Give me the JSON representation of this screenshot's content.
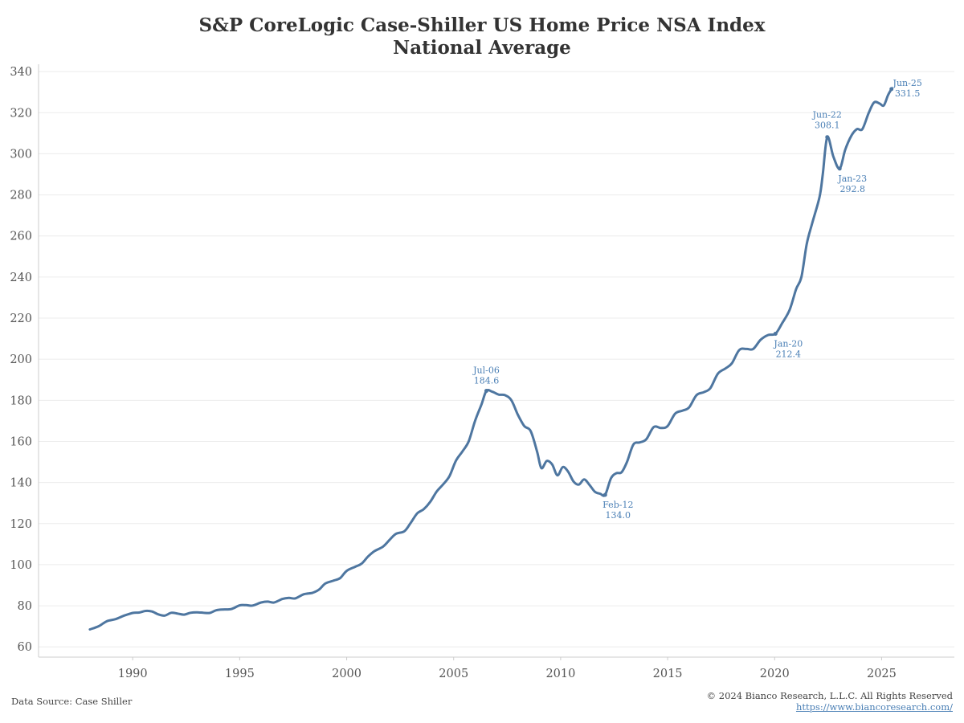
{
  "title_line1": "S&P CoreLogic Case-Shiller US Home Price NSA Index",
  "title_line2": "National Average",
  "footer": {
    "source": "Data Source: Case Shiller",
    "copyright": "© 2024 Bianco Research, L.L.C. All Rights Reserved",
    "url": "https://www.biancoresearch.com/"
  },
  "colors": {
    "line": "#4e76a0",
    "annotation": "#4a7fb5",
    "grid": "#ececec",
    "text": "#555555"
  },
  "chart_data": {
    "type": "line",
    "title": "S&P CoreLogic Case-Shiller US Home Price NSA Index National Average",
    "xlabel": "",
    "ylabel": "",
    "xlim": [
      1985.6,
      2028.4
    ],
    "ylim": [
      55,
      342
    ],
    "x_ticks": [
      1990,
      1995,
      2000,
      2005,
      2010,
      2015,
      2020,
      2025
    ],
    "y_ticks": [
      60,
      80,
      100,
      120,
      140,
      160,
      180,
      200,
      220,
      240,
      260,
      280,
      300,
      320,
      340
    ],
    "grid": "horizontal",
    "series": [
      {
        "points": [
          [
            1988.0,
            68.5
          ],
          [
            1988.4,
            70
          ],
          [
            1988.8,
            72.5
          ],
          [
            1989.2,
            73.5
          ],
          [
            1989.6,
            75.2
          ],
          [
            1990.0,
            76.5
          ],
          [
            1990.3,
            76.7
          ],
          [
            1990.6,
            77.5
          ],
          [
            1990.9,
            77.2
          ],
          [
            1991.2,
            75.8
          ],
          [
            1991.5,
            75.2
          ],
          [
            1991.8,
            76.6
          ],
          [
            1992.1,
            76.2
          ],
          [
            1992.4,
            75.7
          ],
          [
            1992.7,
            76.6
          ],
          [
            1993.0,
            76.8
          ],
          [
            1993.3,
            76.6
          ],
          [
            1993.6,
            76.5
          ],
          [
            1993.9,
            77.8
          ],
          [
            1994.2,
            78.2
          ],
          [
            1994.6,
            78.4
          ],
          [
            1995.0,
            80.2
          ],
          [
            1995.3,
            80.3
          ],
          [
            1995.6,
            80.1
          ],
          [
            1996.0,
            81.6
          ],
          [
            1996.3,
            82.0
          ],
          [
            1996.6,
            81.6
          ],
          [
            1997.0,
            83.3
          ],
          [
            1997.3,
            83.8
          ],
          [
            1997.6,
            83.6
          ],
          [
            1998.0,
            85.6
          ],
          [
            1998.4,
            86.3
          ],
          [
            1998.7,
            87.8
          ],
          [
            1999.0,
            90.8
          ],
          [
            1999.4,
            92.3
          ],
          [
            1999.7,
            93.5
          ],
          [
            2000.0,
            97.0
          ],
          [
            2000.4,
            99.0
          ],
          [
            2000.7,
            100.5
          ],
          [
            2001.0,
            104.0
          ],
          [
            2001.3,
            106.6
          ],
          [
            2001.7,
            108.8
          ],
          [
            2002.0,
            112.0
          ],
          [
            2002.3,
            115.0
          ],
          [
            2002.7,
            116.3
          ],
          [
            2003.0,
            120.5
          ],
          [
            2003.3,
            125.0
          ],
          [
            2003.6,
            127.0
          ],
          [
            2003.9,
            130.5
          ],
          [
            2004.2,
            135.5
          ],
          [
            2004.5,
            139.0
          ],
          [
            2004.8,
            143.0
          ],
          [
            2005.1,
            150.5
          ],
          [
            2005.4,
            155.0
          ],
          [
            2005.7,
            160.0
          ],
          [
            2006.0,
            170.0
          ],
          [
            2006.3,
            178.0
          ],
          [
            2006.53,
            184.6
          ],
          [
            2006.8,
            184.2
          ],
          [
            2007.1,
            182.8
          ],
          [
            2007.4,
            182.5
          ],
          [
            2007.7,
            180.0
          ],
          [
            2008.0,
            173.0
          ],
          [
            2008.3,
            167.5
          ],
          [
            2008.6,
            165.0
          ],
          [
            2008.9,
            155.0
          ],
          [
            2009.1,
            147.0
          ],
          [
            2009.35,
            150.5
          ],
          [
            2009.6,
            148.8
          ],
          [
            2009.85,
            143.5
          ],
          [
            2010.1,
            147.5
          ],
          [
            2010.35,
            145.3
          ],
          [
            2010.6,
            140.5
          ],
          [
            2010.85,
            139.0
          ],
          [
            2011.1,
            141.5
          ],
          [
            2011.35,
            138.8
          ],
          [
            2011.6,
            135.5
          ],
          [
            2011.85,
            134.5
          ],
          [
            2012.08,
            134.0
          ],
          [
            2012.35,
            142.0
          ],
          [
            2012.6,
            144.5
          ],
          [
            2012.85,
            145.0
          ],
          [
            2013.1,
            150.0
          ],
          [
            2013.4,
            158.5
          ],
          [
            2013.7,
            159.5
          ],
          [
            2014.0,
            161.0
          ],
          [
            2014.35,
            167.0
          ],
          [
            2014.7,
            166.5
          ],
          [
            2015.0,
            167.5
          ],
          [
            2015.35,
            173.5
          ],
          [
            2015.7,
            175.0
          ],
          [
            2016.0,
            176.5
          ],
          [
            2016.35,
            182.5
          ],
          [
            2016.7,
            184.0
          ],
          [
            2017.0,
            186.0
          ],
          [
            2017.35,
            193.0
          ],
          [
            2017.7,
            195.5
          ],
          [
            2018.0,
            198.0
          ],
          [
            2018.35,
            204.5
          ],
          [
            2018.7,
            205.0
          ],
          [
            2019.0,
            205.0
          ],
          [
            2019.35,
            209.5
          ],
          [
            2019.7,
            211.8
          ],
          [
            2020.04,
            212.4
          ],
          [
            2020.35,
            217.5
          ],
          [
            2020.7,
            224.0
          ],
          [
            2021.0,
            234.0
          ],
          [
            2021.25,
            240.0
          ],
          [
            2021.5,
            256.0
          ],
          [
            2021.75,
            266.0
          ],
          [
            2022.1,
            279.0
          ],
          [
            2022.25,
            290.0
          ],
          [
            2022.46,
            308.1
          ],
          [
            2022.75,
            298.5
          ],
          [
            2023.04,
            292.8
          ],
          [
            2023.3,
            302.0
          ],
          [
            2023.6,
            309.0
          ],
          [
            2023.85,
            312.0
          ],
          [
            2024.1,
            312.0
          ],
          [
            2024.4,
            320.0
          ],
          [
            2024.65,
            325.0
          ],
          [
            2024.9,
            324.5
          ],
          [
            2025.1,
            323.5
          ],
          [
            2025.3,
            328.5
          ],
          [
            2025.46,
            331.5
          ]
        ]
      }
    ],
    "annotations": [
      {
        "date": "Jul-06",
        "value": 184.6,
        "x": 2006.53,
        "position": "above"
      },
      {
        "date": "Feb-12",
        "value": 134.0,
        "x": 2012.08,
        "position": "below"
      },
      {
        "date": "Jan-20",
        "value": 212.4,
        "x": 2020.04,
        "position": "below"
      },
      {
        "date": "Jun-22",
        "value": 308.1,
        "x": 2022.46,
        "position": "above-left"
      },
      {
        "date": "Jan-23",
        "value": 292.8,
        "x": 2023.04,
        "position": "below"
      },
      {
        "date": "Jun-25",
        "value": 331.5,
        "x": 2025.46,
        "position": "right"
      }
    ]
  }
}
